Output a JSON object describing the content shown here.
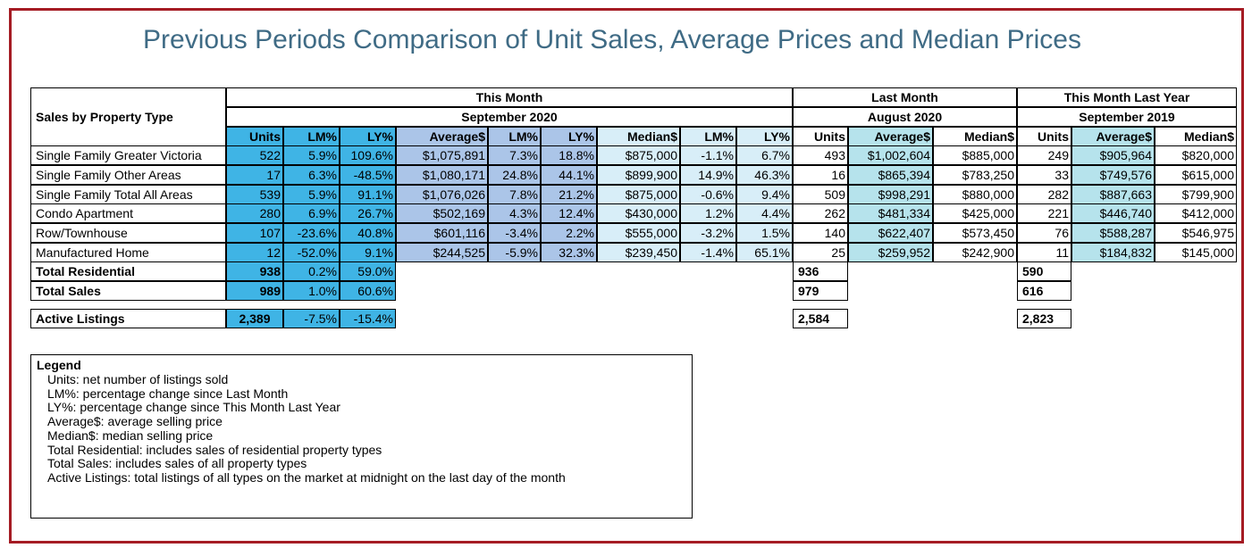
{
  "title": "Previous Periods Comparison of Unit Sales, Average Prices and Median Prices",
  "header": {
    "row_label": "Sales by Property Type",
    "this_month": "This Month",
    "this_month_period": "September 2020",
    "last_month": "Last Month",
    "last_month_period": "August 2020",
    "last_year": "This Month Last Year",
    "last_year_period": "September 2019",
    "columns": [
      "Units",
      "LM%",
      "LY%",
      "Average$",
      "LM%",
      "LY%",
      "Median$",
      "LM%",
      "LY%",
      "Units",
      "Average$",
      "Median$",
      "Units",
      "Average$",
      "Median$"
    ]
  },
  "rows": [
    {
      "label": "Single Family Greater Victoria",
      "values": [
        "522",
        "5.9%",
        "109.6%",
        "$1,075,891",
        "7.3%",
        "18.8%",
        "$875,000",
        "-1.1%",
        "6.7%",
        "493",
        "$1,002,604",
        "$885,000",
        "249",
        "$905,964",
        "$820,000"
      ]
    },
    {
      "label": "Single Family Other Areas",
      "values": [
        "17",
        "6.3%",
        "-48.5%",
        "$1,080,171",
        "24.8%",
        "44.1%",
        "$899,900",
        "14.9%",
        "46.3%",
        "16",
        "$865,394",
        "$783,250",
        "33",
        "$749,576",
        "$615,000"
      ]
    },
    {
      "label": "Single Family Total All Areas",
      "values": [
        "539",
        "5.9%",
        "91.1%",
        "$1,076,026",
        "7.8%",
        "21.2%",
        "$875,000",
        "-0.6%",
        "9.4%",
        "509",
        "$998,291",
        "$880,000",
        "282",
        "$887,663",
        "$799,900"
      ]
    },
    {
      "label": "Condo Apartment",
      "values": [
        "280",
        "6.9%",
        "26.7%",
        "$502,169",
        "4.3%",
        "12.4%",
        "$430,000",
        "1.2%",
        "4.4%",
        "262",
        "$481,334",
        "$425,000",
        "221",
        "$446,740",
        "$412,000"
      ]
    },
    {
      "label": "Row/Townhouse",
      "values": [
        "107",
        "-23.6%",
        "40.8%",
        "$601,116",
        "-3.4%",
        "2.2%",
        "$555,000",
        "-3.2%",
        "1.5%",
        "140",
        "$622,407",
        "$573,450",
        "76",
        "$588,287",
        "$546,975"
      ]
    },
    {
      "label": "Manufactured Home",
      "values": [
        "12",
        "-52.0%",
        "9.1%",
        "$244,525",
        "-5.9%",
        "32.3%",
        "$239,450",
        "-1.4%",
        "65.1%",
        "25",
        "$259,952",
        "$242,900",
        "11",
        "$184,832",
        "$145,000"
      ]
    }
  ],
  "totals": [
    {
      "label": "Total Residential",
      "units": "938",
      "lm": "0.2%",
      "ly": "59.0%",
      "last_month_units": "936",
      "last_year_units": "590"
    },
    {
      "label": "Total Sales",
      "units": "989",
      "lm": "1.0%",
      "ly": "60.6%",
      "last_month_units": "979",
      "last_year_units": "616"
    }
  ],
  "active": {
    "label": "Active Listings",
    "units": "2,389",
    "lm": "-7.5%",
    "ly": "-15.4%",
    "last_month_units": "2,584",
    "last_year_units": "2,823"
  },
  "legend": {
    "title": "Legend",
    "lines": [
      "Units: net number of listings sold",
      "LM%: percentage change since Last Month",
      "LY%: percentage change since This Month Last Year",
      "Average$: average selling price",
      "Median$: median selling price",
      "Total Residential: includes sales of residential property types",
      "Total Sales: includes sales of all property types",
      "Active Listings: total listings of all types on the market at midnight on the last day of the month"
    ]
  },
  "colors": {
    "frame": "#a51c24",
    "title": "#3f6b85",
    "units_fill": "#3fb4e5",
    "average_fill": "#abc5e8",
    "median_fill": "#d8eef8",
    "prior_average_fill": "#b6e3ec"
  }
}
